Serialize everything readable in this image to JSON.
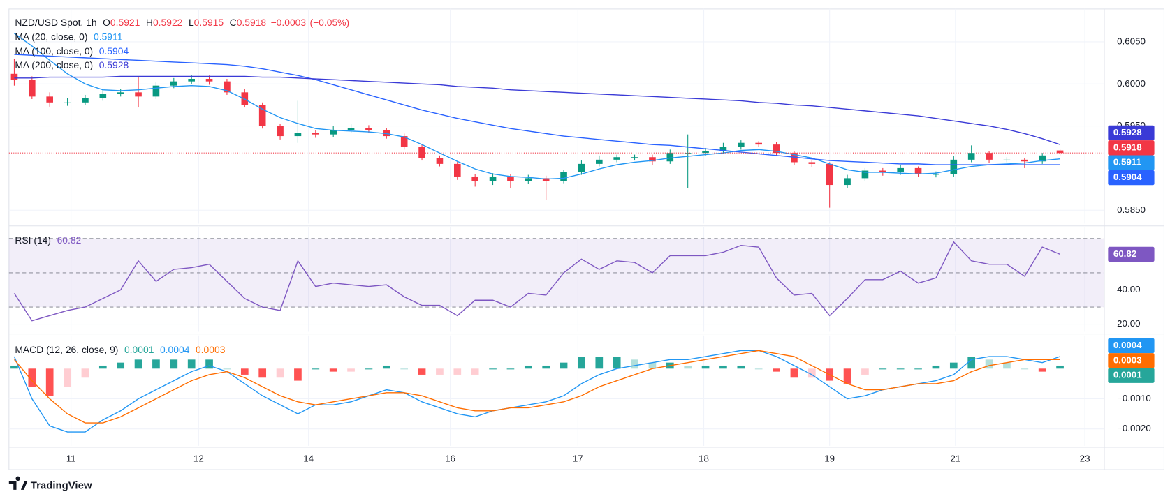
{
  "chart_data": [
    {
      "type": "candlestick",
      "title": "NZD/USD Spot, 1h",
      "quote": [
        {
          "name": "O",
          "value": 0.5921
        },
        {
          "name": "H",
          "value": 0.5922
        },
        {
          "name": "L",
          "value": 0.5915
        },
        {
          "name": "C",
          "value": 0.5918
        }
      ],
      "change": {
        "value": -0.0003,
        "label": "−0.0003"
      },
      "change_pct": {
        "value": -0.05,
        "label": "(−0.05%)"
      },
      "open": [
        0.6012,
        0.6005,
        0.5985,
        0.5978,
        0.5978,
        0.5983,
        0.5988,
        0.599,
        0.5985,
        0.5998,
        0.6003,
        0.6006,
        0.6003,
        0.599,
        0.5975,
        0.595,
        0.5938,
        0.5942,
        0.594,
        0.5945,
        0.5948,
        0.5945,
        0.5938,
        0.5925,
        0.5912,
        0.5905,
        0.589,
        0.5885,
        0.589,
        0.5885,
        0.5888,
        0.5885,
        0.5895,
        0.5905,
        0.591,
        0.5913,
        0.5913,
        0.5908,
        0.5918,
        0.5918,
        0.592,
        0.5925,
        0.593,
        0.5928,
        0.5918,
        0.5907,
        0.5905,
        0.588,
        0.5888,
        0.5897,
        0.5895,
        0.59,
        0.5893,
        0.5893,
        0.591,
        0.5918,
        0.591,
        0.591,
        0.5908,
        0.5921
      ],
      "high": [
        0.603,
        0.6009,
        0.599,
        0.5983,
        0.5987,
        0.5993,
        0.5994,
        0.6008,
        0.6002,
        0.6007,
        0.6011,
        0.601,
        0.6006,
        0.5994,
        0.5978,
        0.5953,
        0.598,
        0.5945,
        0.595,
        0.5952,
        0.5951,
        0.5948,
        0.5941,
        0.5928,
        0.5915,
        0.5908,
        0.5893,
        0.5894,
        0.5893,
        0.5892,
        0.5891,
        0.5898,
        0.5909,
        0.5915,
        0.5916,
        0.5916,
        0.5916,
        0.5922,
        0.594,
        0.5924,
        0.593,
        0.5933,
        0.5932,
        0.5931,
        0.592,
        0.591,
        0.5907,
        0.5892,
        0.59,
        0.59,
        0.5904,
        0.5902,
        0.5896,
        0.5914,
        0.5927,
        0.592,
        0.5913,
        0.5912,
        0.5918,
        0.5922
      ],
      "low": [
        0.5998,
        0.5982,
        0.5973,
        0.5974,
        0.5975,
        0.598,
        0.5985,
        0.5972,
        0.5982,
        0.5995,
        0.6,
        0.5999,
        0.5987,
        0.5972,
        0.5947,
        0.5934,
        0.593,
        0.5936,
        0.5937,
        0.5942,
        0.5942,
        0.5935,
        0.5922,
        0.5909,
        0.5902,
        0.5886,
        0.5878,
        0.588,
        0.5876,
        0.5881,
        0.5862,
        0.5882,
        0.5892,
        0.5902,
        0.5907,
        0.5909,
        0.5904,
        0.5905,
        0.5876,
        0.5915,
        0.5917,
        0.5922,
        0.5925,
        0.5915,
        0.5904,
        0.5901,
        0.5853,
        0.5876,
        0.5885,
        0.5891,
        0.5892,
        0.589,
        0.5889,
        0.589,
        0.5907,
        0.5906,
        0.5907,
        0.59,
        0.5905,
        0.5915
      ],
      "close": [
        0.6005,
        0.5985,
        0.5978,
        0.5978,
        0.5983,
        0.5988,
        0.599,
        0.5985,
        0.5998,
        0.6003,
        0.6006,
        0.6003,
        0.599,
        0.5975,
        0.595,
        0.5938,
        0.5942,
        0.594,
        0.5945,
        0.5948,
        0.5945,
        0.5938,
        0.5925,
        0.5912,
        0.5905,
        0.589,
        0.5885,
        0.589,
        0.5885,
        0.5888,
        0.5885,
        0.5895,
        0.5905,
        0.591,
        0.5913,
        0.5913,
        0.5908,
        0.5918,
        0.5918,
        0.592,
        0.5925,
        0.593,
        0.5928,
        0.5918,
        0.5907,
        0.5905,
        0.588,
        0.5888,
        0.5897,
        0.5895,
        0.59,
        0.5893,
        0.5893,
        0.591,
        0.5918,
        0.591,
        0.591,
        0.5908,
        0.5915,
        0.5918
      ],
      "up_color": "#089981",
      "down_color": "#f23645",
      "series": [
        {
          "name": "MA (20, close, 0)",
          "color": "#2196f3",
          "values": [
            0.606,
            0.6045,
            0.6028,
            0.6012,
            0.6,
            0.5993,
            0.5992,
            0.5993,
            0.5995,
            0.5997,
            0.5998,
            0.5997,
            0.5992,
            0.5982,
            0.597,
            0.596,
            0.5953,
            0.5947,
            0.5945,
            0.5944,
            0.5943,
            0.5941,
            0.5937,
            0.5928,
            0.5918,
            0.5908,
            0.5899,
            0.5893,
            0.589,
            0.5889,
            0.5887,
            0.5888,
            0.5893,
            0.5899,
            0.5904,
            0.5907,
            0.5909,
            0.5912,
            0.5914,
            0.5916,
            0.5918,
            0.5921,
            0.5922,
            0.592,
            0.5916,
            0.5912,
            0.5905,
            0.5898,
            0.5895,
            0.5895,
            0.5894,
            0.5893,
            0.5894,
            0.5898,
            0.5902,
            0.5904,
            0.5905,
            0.5906,
            0.5909,
            0.5911
          ]
        },
        {
          "name": "MA (100, close, 0)",
          "color": "#2962ff",
          "values": [
            0.6035,
            0.6034,
            0.6033,
            0.6032,
            0.6031,
            0.603,
            0.6029,
            0.6028,
            0.6027,
            0.6026,
            0.6025,
            0.6024,
            0.6023,
            0.6021,
            0.6018,
            0.6014,
            0.601,
            0.6005,
            0.5999,
            0.5993,
            0.5987,
            0.5981,
            0.5975,
            0.5969,
            0.5964,
            0.5959,
            0.5955,
            0.5951,
            0.5947,
            0.5944,
            0.5941,
            0.5938,
            0.5936,
            0.5934,
            0.5932,
            0.593,
            0.5928,
            0.5927,
            0.5925,
            0.5923,
            0.5921,
            0.5919,
            0.5917,
            0.5915,
            0.5913,
            0.5911,
            0.5909,
            0.5908,
            0.5907,
            0.5906,
            0.5905,
            0.5905,
            0.5904,
            0.5904,
            0.5904,
            0.5904,
            0.5904,
            0.5904,
            0.5904,
            0.5904
          ]
        },
        {
          "name": "MA (200, close, 0)",
          "color": "#3a3ad6",
          "values": [
            0.6007,
            0.6007,
            0.6008,
            0.6008,
            0.6008,
            0.6008,
            0.6009,
            0.6009,
            0.6009,
            0.6009,
            0.6009,
            0.6009,
            0.6009,
            0.6009,
            0.6008,
            0.6008,
            0.6007,
            0.6006,
            0.6005,
            0.6004,
            0.6003,
            0.6002,
            0.6001,
            0.6,
            0.5999,
            0.5997,
            0.5996,
            0.5995,
            0.5993,
            0.5992,
            0.5991,
            0.599,
            0.5989,
            0.5988,
            0.5987,
            0.5986,
            0.5985,
            0.5984,
            0.5983,
            0.5982,
            0.5981,
            0.598,
            0.5978,
            0.5977,
            0.5975,
            0.5974,
            0.5972,
            0.597,
            0.5968,
            0.5966,
            0.5964,
            0.5962,
            0.5959,
            0.5956,
            0.5953,
            0.595,
            0.5946,
            0.5941,
            0.5935,
            0.5928
          ]
        }
      ],
      "ylim": [
        0.5834,
        0.6089
      ],
      "yticks": [
        {
          "value": 0.605,
          "label": "0.6050"
        },
        {
          "value": 0.6,
          "label": "0.6000"
        },
        {
          "value": 0.595,
          "label": "0.5950"
        },
        {
          "value": 0.585,
          "label": "0.5850"
        }
      ],
      "xlim": [
        -0.3,
        61.5
      ],
      "xticks": [
        {
          "value": 3.2,
          "label": "11"
        },
        {
          "value": 10.4,
          "label": "12"
        },
        {
          "value": 16.6,
          "label": "14"
        },
        {
          "value": 24.6,
          "label": "16"
        },
        {
          "value": 31.8,
          "label": "17"
        },
        {
          "value": 38.9,
          "label": "18"
        },
        {
          "value": 46,
          "label": "19"
        },
        {
          "value": 53.1,
          "label": "21"
        },
        {
          "value": 60.4,
          "label": "23"
        }
      ],
      "grid": true,
      "price_line": true,
      "source": "TradingView"
    },
    {
      "type": "line",
      "title": "RSI (14)",
      "series": [
        {
          "color": "#7e57c2",
          "values": [
            38,
            22,
            25,
            28,
            30,
            35,
            40,
            57,
            45,
            52,
            53,
            55,
            45,
            35,
            30,
            28,
            57,
            42,
            44,
            43,
            42,
            43,
            36,
            31,
            31,
            25,
            34,
            34,
            30,
            38,
            37,
            50,
            58,
            52,
            57,
            56,
            50,
            60,
            60,
            60,
            62,
            66,
            65,
            47,
            37,
            38,
            25,
            35,
            46,
            46,
            51,
            44,
            47,
            68,
            57,
            55,
            55,
            48,
            65,
            60.82
          ]
        }
      ],
      "levels": [
        70,
        50,
        30
      ],
      "band_color": "#7e57c2",
      "ylim": [
        15.6,
        76.5
      ],
      "yticks": [
        {
          "value": 40,
          "label": "40.00"
        },
        {
          "value": 20,
          "label": "20.00"
        }
      ],
      "grid": true
    },
    {
      "type": "combo",
      "title": "MACD (12, 26, close, 9)",
      "series": [
        {
          "type": "bar",
          "colors": [
            "#26a69a",
            "#b2dfdb",
            "#ffcdd2",
            "#ff5252"
          ],
          "values": [
            0.0001,
            -0.0006,
            -0.0009,
            -0.0006,
            -0.0003,
            0.0001,
            0.0002,
            0.0003,
            0.0003,
            0.0003,
            0.0003,
            0.0003,
            0,
            -0.0002,
            -0.0003,
            -0.0003,
            -0.0004,
            0,
            -0.0001,
            -0.0001,
            0,
            0.0001,
            0,
            -0.0002,
            -0.0002,
            -0.0002,
            -0.0002,
            0,
            0,
            0.0001,
            0.0001,
            0.0002,
            0.0004,
            0.0004,
            0.0004,
            0.0003,
            0.0002,
            0.0002,
            0.0001,
            0.0001,
            0.0001,
            0.0001,
            0,
            -0.0001,
            -0.0003,
            -0.0003,
            -0.0004,
            -0.0005,
            -0.0002,
            0,
            0,
            0,
            0.0001,
            0.0002,
            0.0004,
            0.0003,
            0.0002,
            0,
            -0.0001,
            0.0001
          ]
        },
        {
          "type": "line",
          "color": "#2196f3",
          "values": [
            0.0004,
            -0.001,
            -0.0019,
            -0.0021,
            -0.0021,
            -0.0017,
            -0.0014,
            -0.001,
            -0.0007,
            -0.0004,
            -0.0001,
            0.0001,
            -0.0001,
            -0.0005,
            -0.0009,
            -0.0012,
            -0.0015,
            -0.0012,
            -0.0012,
            -0.0011,
            -0.0009,
            -0.0007,
            -0.0008,
            -0.0011,
            -0.0013,
            -0.0015,
            -0.0016,
            -0.0014,
            -0.0013,
            -0.0012,
            -0.0011,
            -0.0009,
            -0.0005,
            -0.0002,
            0,
            0.0001,
            0.0002,
            0.0003,
            0.0003,
            0.0004,
            0.0005,
            0.0006,
            0.0006,
            0.0004,
            0.0001,
            -0.0002,
            -0.0006,
            -0.001,
            -0.0009,
            -0.0007,
            -0.0006,
            -0.0005,
            -0.0004,
            -0.0002,
            0.0003,
            0.0004,
            0.0004,
            0.0003,
            0.0002,
            0.0004
          ]
        },
        {
          "type": "line",
          "color": "#ff6d00",
          "values": [
            0.0003,
            -0.0004,
            -0.001,
            -0.0015,
            -0.0018,
            -0.0018,
            -0.0016,
            -0.0013,
            -0.001,
            -0.0007,
            -0.0004,
            -0.0002,
            -0.0001,
            -0.0003,
            -0.0006,
            -0.0009,
            -0.0011,
            -0.0012,
            -0.0011,
            -0.001,
            -0.0009,
            -0.0008,
            -0.0008,
            -0.0009,
            -0.0011,
            -0.0013,
            -0.0014,
            -0.0014,
            -0.0013,
            -0.0013,
            -0.0012,
            -0.0011,
            -0.0009,
            -0.0006,
            -0.0004,
            -0.0002,
            0,
            0.0001,
            0.0002,
            0.0003,
            0.0004,
            0.0005,
            0.0006,
            0.0005,
            0.0004,
            0.0001,
            -0.0002,
            -0.0005,
            -0.0007,
            -0.0007,
            -0.0006,
            -0.0005,
            -0.0005,
            -0.0004,
            -0.0001,
            0.0001,
            0.0002,
            0.0003,
            0.0003,
            0.0003
          ]
        }
      ],
      "ylim": [
        -0.00256,
        0.0011
      ],
      "yticks": [
        {
          "value": -0.001,
          "label": "−0.0010"
        },
        {
          "value": -0.002,
          "label": "−0.0020"
        }
      ],
      "grid": true
    }
  ]
}
